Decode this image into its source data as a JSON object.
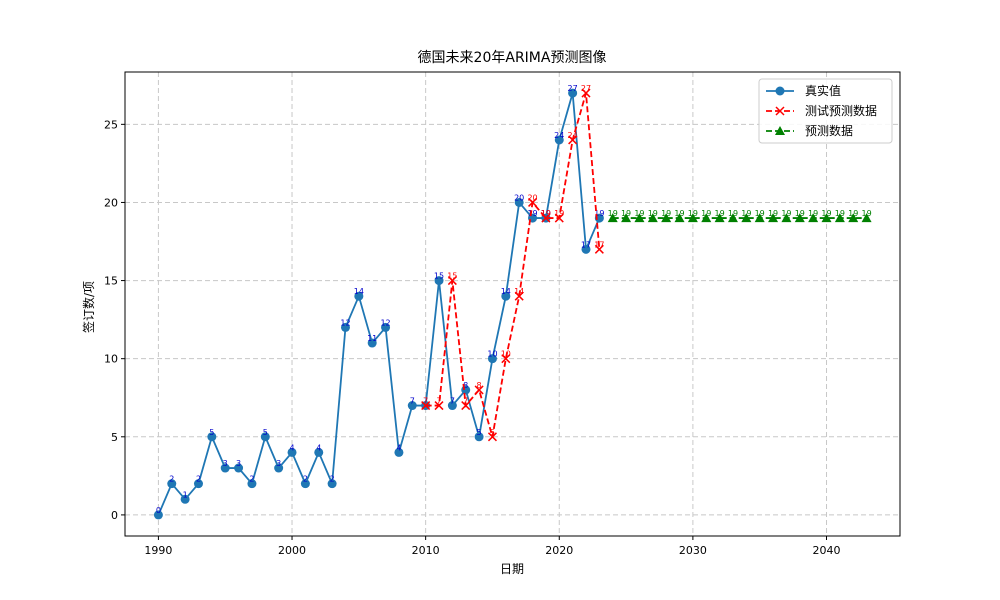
{
  "chart_data": {
    "type": "line",
    "title": "德国未来20年ARIMA预测图像",
    "xlabel": "日期",
    "ylabel": "签订数/项",
    "xlim": [
      1987.5,
      2045.5
    ],
    "ylim": [
      -1.35,
      28.35
    ],
    "x_ticks": [
      1990,
      2000,
      2010,
      2020,
      2030,
      2040
    ],
    "y_ticks": [
      0,
      5,
      10,
      15,
      20,
      25
    ],
    "grid": true,
    "legend_position": "top-right",
    "series": [
      {
        "name": "真实值",
        "color": "#1f77b4",
        "label_color": "#0000cc",
        "line_style": "solid",
        "marker": "circle",
        "x": [
          1990,
          1991,
          1992,
          1993,
          1994,
          1995,
          1996,
          1997,
          1998,
          1999,
          2000,
          2001,
          2002,
          2003,
          2004,
          2005,
          2006,
          2007,
          2008,
          2009,
          2010,
          2011,
          2012,
          2013,
          2014,
          2015,
          2016,
          2017,
          2018,
          2019,
          2020,
          2021,
          2022,
          2023
        ],
        "values": [
          0,
          2,
          1,
          2,
          5,
          3,
          3,
          2,
          5,
          3,
          4,
          2,
          4,
          2,
          12,
          14,
          11,
          12,
          4,
          7,
          7,
          15,
          7,
          8,
          5,
          10,
          14,
          20,
          19,
          19,
          24,
          27,
          17,
          19
        ]
      },
      {
        "name": "测试预测数据",
        "color": "#ff0000",
        "label_color": "#ff0000",
        "line_style": "dashed",
        "marker": "x",
        "x": [
          2010,
          2011,
          2012,
          2013,
          2014,
          2015,
          2016,
          2017,
          2018,
          2019,
          2020,
          2021,
          2022,
          2023
        ],
        "values": [
          7,
          7,
          15,
          7,
          8,
          5,
          10,
          14,
          20,
          19,
          19,
          24,
          27,
          17
        ]
      },
      {
        "name": "预测数据",
        "color": "#008000",
        "label_color": "#008000",
        "line_style": "dashed",
        "marker": "triangle",
        "x": [
          2024,
          2025,
          2026,
          2027,
          2028,
          2029,
          2030,
          2031,
          2032,
          2033,
          2034,
          2035,
          2036,
          2037,
          2038,
          2039,
          2040,
          2041,
          2042,
          2043
        ],
        "values": [
          19,
          19,
          19,
          19,
          19,
          19,
          19,
          19,
          19,
          19,
          19,
          19,
          19,
          19,
          19,
          19,
          19,
          19,
          19,
          19
        ]
      }
    ]
  }
}
